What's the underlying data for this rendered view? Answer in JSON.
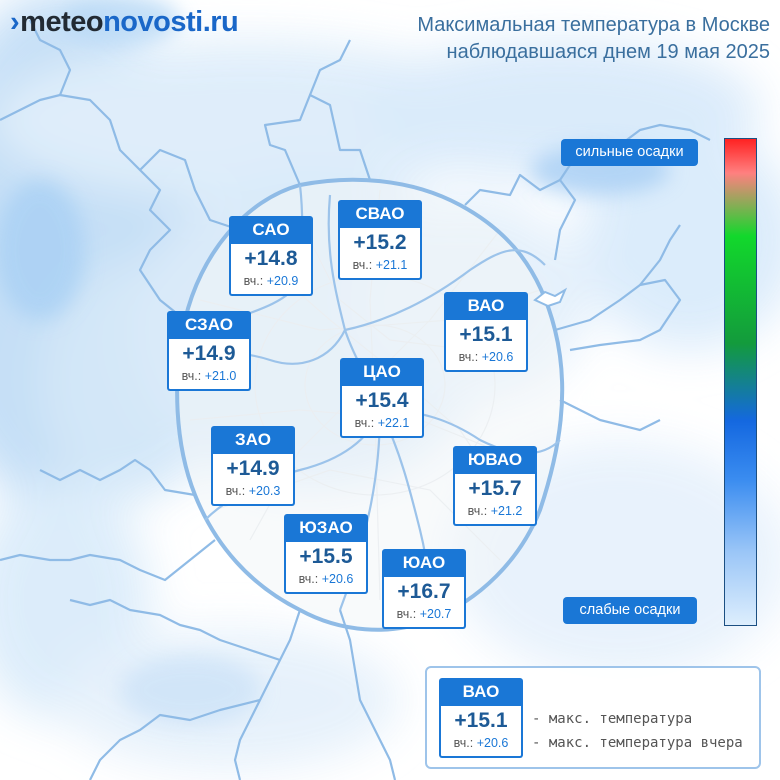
{
  "logo": {
    "mark": "›",
    "part1": "meteo",
    "part2": "novosti.ru"
  },
  "title": {
    "line1": "Максимальная температура в Москве",
    "line2": "наблюдавшаяся днем 19 мая 2025"
  },
  "yesterday_label": "вч.:",
  "districts": [
    {
      "name": "САО",
      "temp": "+14.8",
      "yesterday": "+20.9"
    },
    {
      "name": "СВАО",
      "temp": "+15.2",
      "yesterday": "+21.1"
    },
    {
      "name": "ВАО",
      "temp": "+15.1",
      "yesterday": "+20.6"
    },
    {
      "name": "СЗАО",
      "temp": "+14.9",
      "yesterday": "+21.0"
    },
    {
      "name": "ЦАО",
      "temp": "+15.4",
      "yesterday": "+22.1"
    },
    {
      "name": "ЗАО",
      "temp": "+14.9",
      "yesterday": "+20.3"
    },
    {
      "name": "ЮВАО",
      "temp": "+15.7",
      "yesterday": "+21.2"
    },
    {
      "name": "ЮЗАО",
      "temp": "+15.5",
      "yesterday": "+20.6"
    },
    {
      "name": "ЮАО",
      "temp": "+16.7",
      "yesterday": "+20.7"
    }
  ],
  "precip_scale": {
    "top_label": "сильные осадки",
    "bottom_label": "слабые осадки",
    "colors": [
      "#ff2222",
      "#ff8080",
      "#12d82c",
      "#139b3c",
      "#1468e0",
      "#3a8cf0",
      "#9bc6f7",
      "#ddeefd"
    ]
  },
  "legend": {
    "sample_name": "ВАО",
    "sample_temp": "+15.1",
    "sample_yesterday": "+20.6",
    "line1": "- макс. температура",
    "line2": "- макс. температура вчера"
  },
  "colors": {
    "accent": "#1a77d6",
    "boundary": "#8fbbe6",
    "title": "#3a6f9e"
  }
}
